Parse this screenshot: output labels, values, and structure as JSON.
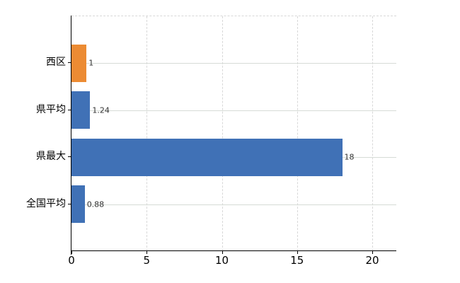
{
  "chart_data": {
    "type": "bar",
    "orientation": "horizontal",
    "title": "",
    "xlabel": "",
    "ylabel": "",
    "legend": "none",
    "categories": [
      "西区",
      "県平均",
      "県最大",
      "全国平均"
    ],
    "values": [
      1,
      1.24,
      18,
      0.88
    ],
    "value_labels": [
      "1",
      "1.24",
      "18",
      "0.88"
    ],
    "bar_colors": [
      "#EC8B33",
      "#4071B6",
      "#4071B6",
      "#4071B6"
    ],
    "xlim": [
      0,
      21.6
    ],
    "x_ticks": [
      0,
      5,
      10,
      15,
      20
    ],
    "x_tick_labels": [
      "0",
      "5",
      "10",
      "15",
      "20"
    ],
    "grid": {
      "vertical_lines": "dashed",
      "horizontal_category_lines": "solid",
      "top_border": "dashed"
    },
    "colors": {
      "background": "#FFFFFF",
      "bar_blue": "#4071B6",
      "bar_orange": "#EC8B33",
      "axis_line": "#000000",
      "grid_line": "#D8D8D8",
      "category_grid_line": "#D6DBD6",
      "value_label_text": "#333333",
      "axis_label_text": "#000000"
    }
  }
}
